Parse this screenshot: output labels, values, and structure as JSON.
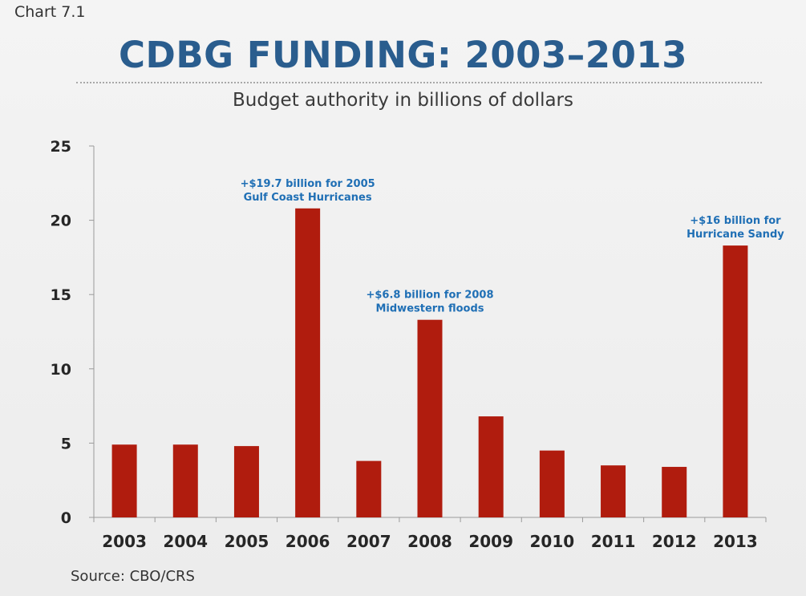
{
  "header": {
    "chart_label": "Chart 7.1",
    "title": "CDBG FUNDING: 2003–2013",
    "subtitle": "Budget authority in billions of dollars"
  },
  "footer": {
    "source": "Source: CBO/CRS"
  },
  "colors": {
    "bar": "#b01c0e",
    "title": "#2a5d8e",
    "annotation": "#1f6fb5",
    "axis": "#9a9a9a"
  },
  "chart_data": {
    "type": "bar",
    "title": "CDBG FUNDING: 2003–2013",
    "subtitle": "Budget authority in billions of dollars",
    "xlabel": "",
    "ylabel": "",
    "categories": [
      "2003",
      "2004",
      "2005",
      "2006",
      "2007",
      "2008",
      "2009",
      "2010",
      "2011",
      "2012",
      "2013"
    ],
    "values": [
      4.9,
      4.9,
      4.8,
      20.8,
      3.8,
      13.3,
      6.8,
      4.5,
      3.5,
      3.4,
      18.3
    ],
    "ylim": [
      0,
      25
    ],
    "yticks": [
      0,
      5,
      10,
      15,
      20,
      25
    ],
    "grid": false,
    "legend": "none",
    "annotations": [
      {
        "category": "2006",
        "lines": [
          "+$19.7 billion for 2005",
          "Gulf Coast Hurricanes"
        ]
      },
      {
        "category": "2008",
        "lines": [
          "+$6.8 billion for 2008",
          "Midwestern floods"
        ]
      },
      {
        "category": "2013",
        "lines": [
          "+$16 billion for",
          "Hurricane Sandy"
        ]
      }
    ]
  }
}
